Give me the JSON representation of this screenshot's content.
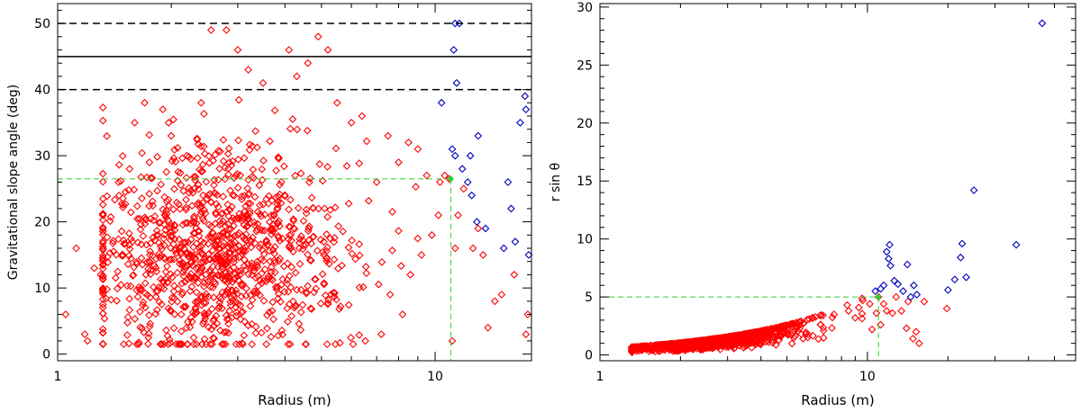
{
  "chart_data": [
    {
      "type": "scatter",
      "title": "",
      "xlabel": "Radius (m)",
      "ylabel": "Gravitational slope angle (deg)",
      "xscale": "log",
      "xlim": [
        1,
        18
      ],
      "ylim": [
        -1,
        53
      ],
      "xticks": [
        {
          "v": 1,
          "label": "1"
        },
        {
          "v": 10,
          "label": "10"
        }
      ],
      "yticks": [
        {
          "v": 0,
          "label": "0"
        },
        {
          "v": 10,
          "label": "10"
        },
        {
          "v": 20,
          "label": "20"
        },
        {
          "v": 30,
          "label": "30"
        },
        {
          "v": 40,
          "label": "40"
        },
        {
          "v": 50,
          "label": "50"
        }
      ],
      "grid": false,
      "hlines": [
        {
          "y": 45,
          "style": "solid",
          "color": "#000000"
        },
        {
          "y": 50,
          "style": "dashed",
          "color": "#000000"
        },
        {
          "y": 40,
          "style": "dashed",
          "color": "#000000"
        }
      ],
      "guide": {
        "x": 11,
        "y": 26.5,
        "color": "#33cc33"
      },
      "gen": {
        "n": 1100,
        "seed": 7,
        "mode": "slope"
      },
      "series": [
        {
          "color": "#ff0000",
          "points": [
            [
              1.05,
              6
            ],
            [
              1.12,
              16
            ],
            [
              1.25,
              13
            ],
            [
              1.3,
              12
            ],
            [
              1.18,
              3
            ],
            [
              1.2,
              2
            ],
            [
              1.45,
              26
            ],
            [
              1.55,
              28
            ],
            [
              1.6,
              35
            ],
            [
              1.7,
              38
            ],
            [
              1.75,
              29
            ],
            [
              1.9,
              37
            ],
            [
              2.0,
              33
            ],
            [
              2.2,
              30
            ],
            [
              2.4,
              38
            ],
            [
              2.55,
              49
            ],
            [
              2.8,
              49
            ],
            [
              3.0,
              46
            ],
            [
              3.2,
              43
            ],
            [
              3.5,
              41
            ],
            [
              4.1,
              46
            ],
            [
              4.3,
              42
            ],
            [
              4.6,
              44
            ],
            [
              4.9,
              48
            ],
            [
              5.2,
              46
            ],
            [
              5.5,
              38
            ],
            [
              6.0,
              35
            ],
            [
              6.4,
              36
            ],
            [
              7.0,
              26
            ],
            [
              7.5,
              33
            ],
            [
              8.0,
              29
            ],
            [
              8.5,
              32
            ],
            [
              9.0,
              31
            ],
            [
              9.5,
              27
            ],
            [
              10.3,
              26
            ],
            [
              10.6,
              27
            ],
            [
              10.2,
              21
            ],
            [
              9.8,
              18
            ],
            [
              9.2,
              15
            ],
            [
              8.6,
              12
            ],
            [
              8.2,
              6
            ],
            [
              7.6,
              9
            ],
            [
              7.2,
              3
            ],
            [
              11.1,
              2
            ],
            [
              11.3,
              16
            ],
            [
              11.5,
              21
            ],
            [
              11.9,
              25
            ],
            [
              12.6,
              16
            ],
            [
              13.0,
              19
            ],
            [
              13.4,
              15
            ],
            [
              13.8,
              4
            ],
            [
              14.4,
              8
            ],
            [
              15.0,
              9
            ],
            [
              16.2,
              12
            ],
            [
              17.4,
              3
            ],
            [
              17.6,
              6
            ],
            [
              10.9,
              26.5
            ]
          ]
        },
        {
          "color": "#0000bb",
          "points": [
            [
              10.4,
              38
            ],
            [
              11.3,
              50
            ],
            [
              11.6,
              50
            ],
            [
              11.2,
              46
            ],
            [
              11.4,
              41
            ],
            [
              11.1,
              31
            ],
            [
              11.3,
              30
            ],
            [
              11.8,
              28
            ],
            [
              12.4,
              30
            ],
            [
              13.0,
              33
            ],
            [
              12.2,
              26
            ],
            [
              12.5,
              24
            ],
            [
              12.9,
              20
            ],
            [
              13.6,
              19
            ],
            [
              15.6,
              26
            ],
            [
              15.9,
              22
            ],
            [
              15.2,
              16
            ],
            [
              16.3,
              17
            ],
            [
              16.8,
              35
            ],
            [
              17.4,
              37
            ],
            [
              17.7,
              15
            ],
            [
              17.3,
              39
            ]
          ]
        }
      ]
    },
    {
      "type": "scatter",
      "title": "",
      "xlabel": "Radius (m)",
      "ylabel": "r sin θ",
      "xscale": "log",
      "xlim": [
        1,
        60
      ],
      "ylim": [
        -0.5,
        30.3
      ],
      "xticks": [
        {
          "v": 1,
          "label": "1"
        },
        {
          "v": 10,
          "label": "10"
        }
      ],
      "yticks": [
        {
          "v": 0,
          "label": "0"
        },
        {
          "v": 5,
          "label": "5"
        },
        {
          "v": 10,
          "label": "10"
        },
        {
          "v": 15,
          "label": "15"
        },
        {
          "v": 20,
          "label": "20"
        },
        {
          "v": 25,
          "label": "25"
        },
        {
          "v": 30,
          "label": "30"
        }
      ],
      "grid": false,
      "hlines": [],
      "guide": {
        "x": 11,
        "y": 5,
        "color": "#33cc33"
      },
      "gen": {
        "n": 1100,
        "seed": 11,
        "mode": "rsin"
      },
      "series": [
        {
          "color": "#ff0000",
          "points": [
            [
              7.5,
              3.5
            ],
            [
              8.5,
              3.8
            ],
            [
              9.0,
              3.2
            ],
            [
              9.6,
              4.7
            ],
            [
              10.2,
              4.4
            ],
            [
              10.8,
              3.6
            ],
            [
              10.4,
              2.2
            ],
            [
              11.2,
              2.6
            ],
            [
              11.8,
              3.8
            ],
            [
              12.4,
              3.6
            ],
            [
              11.5,
              4.4
            ],
            [
              12.8,
              5.0
            ],
            [
              13.4,
              3.8
            ],
            [
              14.2,
              4.6
            ],
            [
              14.0,
              2.3
            ],
            [
              15.2,
              2.0
            ],
            [
              15.6,
              1.0
            ],
            [
              16.3,
              4.6
            ],
            [
              14.8,
              1.4
            ],
            [
              19.8,
              4.0
            ],
            [
              11.0,
              5.0
            ]
          ]
        },
        {
          "color": "#0000bb",
          "points": [
            [
              10.7,
              5.5
            ],
            [
              11.2,
              5.7
            ],
            [
              11.5,
              6.0
            ],
            [
              11.8,
              8.9
            ],
            [
              12.0,
              8.3
            ],
            [
              12.2,
              7.7
            ],
            [
              12.1,
              9.5
            ],
            [
              12.6,
              6.4
            ],
            [
              13.0,
              6.1
            ],
            [
              13.6,
              5.5
            ],
            [
              14.1,
              7.8
            ],
            [
              14.9,
              6.0
            ],
            [
              14.5,
              5.0
            ],
            [
              15.3,
              5.2
            ],
            [
              20.0,
              5.6
            ],
            [
              21.2,
              6.5
            ],
            [
              22.3,
              8.4
            ],
            [
              22.6,
              9.6
            ],
            [
              23.4,
              6.7
            ],
            [
              25.0,
              14.2
            ],
            [
              36.0,
              9.5
            ],
            [
              45.0,
              28.6
            ]
          ]
        }
      ]
    }
  ]
}
